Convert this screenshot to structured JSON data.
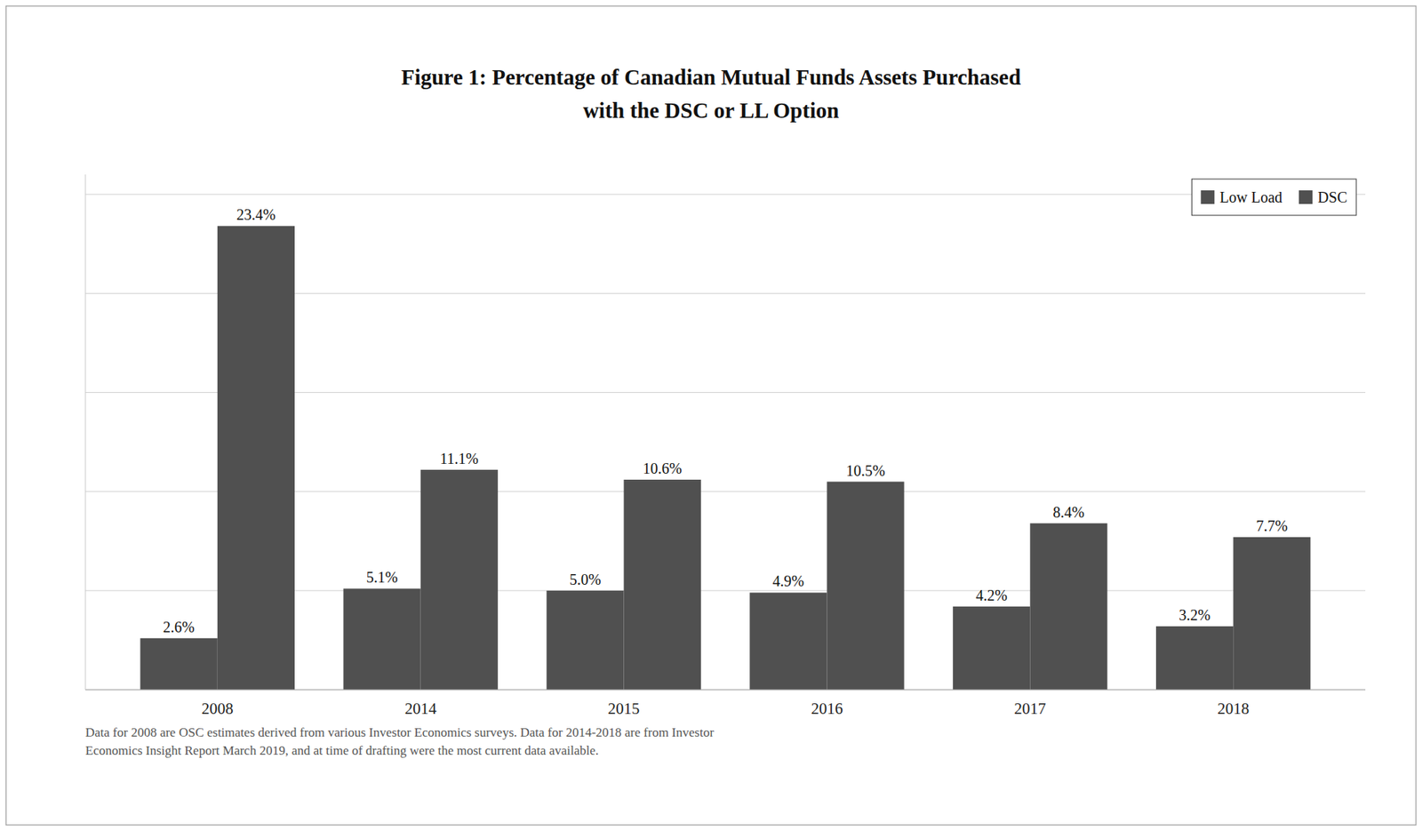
{
  "chart_data": {
    "type": "bar",
    "title": "Figure 1: Percentage of Canadian  Mutual Funds Assets Purchased\nwith the DSC or LL Option",
    "categories": [
      "2008",
      "2014",
      "2015",
      "2016",
      "2017",
      "2018"
    ],
    "series": [
      {
        "name": "Low Load",
        "color": "#505050",
        "values": [
          2.6,
          5.1,
          5.0,
          4.9,
          4.2,
          3.2
        ],
        "value_labels": [
          "2.6%",
          "5.1%",
          "5.0%",
          "4.9%",
          "4.2%",
          "3.2%"
        ]
      },
      {
        "name": "DSC",
        "color": "#505050",
        "values": [
          23.4,
          11.1,
          10.6,
          10.5,
          8.4,
          7.7
        ],
        "value_labels": [
          "23.4%",
          "11.1%",
          "10.6%",
          "10.5%",
          "8.4%",
          "7.7%"
        ]
      }
    ],
    "ylim": [
      0,
      26
    ],
    "yticks": [
      0,
      5,
      10,
      15,
      20,
      25
    ],
    "grid": true,
    "legend": "top-right",
    "data_labels": true,
    "tick_labels": "x",
    "footnote": "Data for 2008 are OSC estimates derived from various Investor Economics surveys. Data for 2014-2018  are from  Investor\nEconomics Insight Report March 2019, and at time of drafting were the most current data available."
  }
}
